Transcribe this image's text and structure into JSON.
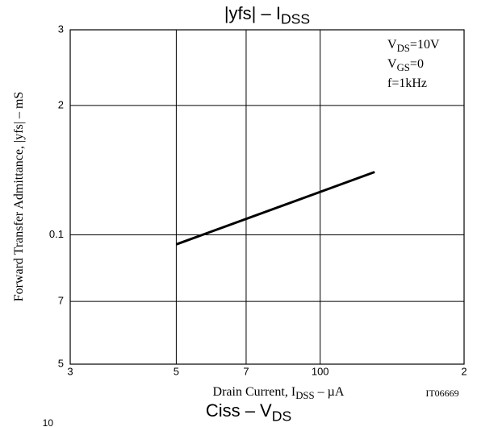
{
  "chart_data": {
    "type": "line",
    "title": [
      {
        "text": "|yfs|  –  I"
      },
      {
        "text": "DSS",
        "sub": true
      }
    ],
    "x_label": [
      {
        "text": "Drain Current, I"
      },
      {
        "text": "DSS",
        "sub": true
      },
      {
        "text": "  –  µA"
      }
    ],
    "y_label": [
      {
        "text": "Forward Transfer Admittance, |yfs|  –  mS"
      }
    ],
    "annotations": [
      [
        {
          "text": "V"
        },
        {
          "text": "DS",
          "sub": true
        },
        {
          "text": "=10V"
        }
      ],
      [
        {
          "text": "V"
        },
        {
          "text": "GS",
          "sub": true
        },
        {
          "text": "=0"
        }
      ],
      [
        {
          "text": "f=1kHz"
        }
      ]
    ],
    "code": "IT06669",
    "x": [
      50,
      130
    ],
    "values": [
      0.095,
      0.14
    ],
    "color": "#000000",
    "xscale": "log",
    "yscale": "log",
    "xlim": [
      30,
      200
    ],
    "ylim": [
      0.05,
      0.3
    ],
    "xticks": [
      {
        "value": 30,
        "label": "3"
      },
      {
        "value": 50,
        "label": "5"
      },
      {
        "value": 70,
        "label": "7"
      },
      100,
      {
        "value": 200,
        "label": "2"
      }
    ],
    "yticks": [
      {
        "value": 0.05,
        "label": "5"
      },
      {
        "value": 0.07,
        "label": "7"
      },
      0.1,
      {
        "value": 0.2,
        "label": "2"
      },
      {
        "value": 0.3,
        "label": "3"
      }
    ],
    "grid": true
  },
  "next_chart": {
    "title": [
      {
        "text": "Ciss  –  V"
      },
      {
        "text": "DS",
        "sub": true
      }
    ],
    "ytick": "10"
  }
}
